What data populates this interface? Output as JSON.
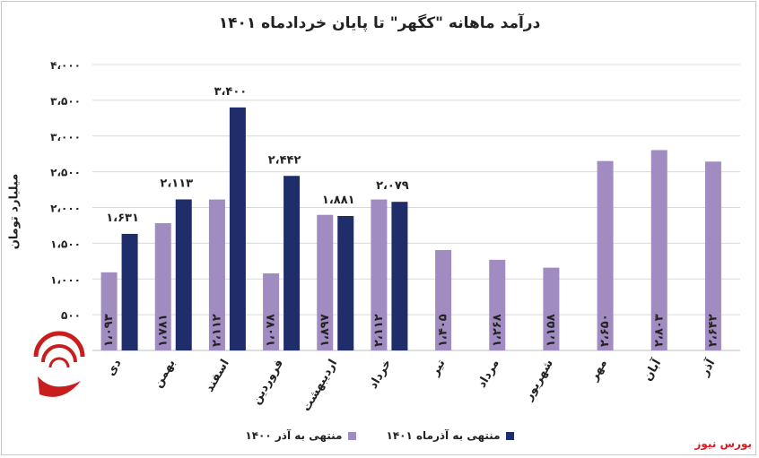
{
  "chart_data": {
    "type": "bar",
    "title": "درآمد ماهانه \"کگهر\" تا پایان خردادماه ۱۴۰۱",
    "ylabel": "میلیارد تومان",
    "xlabel": "",
    "ylim": [
      0,
      4000
    ],
    "yticks": [
      0,
      500,
      1000,
      1500,
      2000,
      2500,
      3000,
      3500,
      4000
    ],
    "ytick_labels": [
      "",
      "۵۰۰",
      "۱،۰۰۰",
      "۱،۵۰۰",
      "۲،۰۰۰",
      "۲،۵۰۰",
      "۳،۰۰۰",
      "۳،۵۰۰",
      "۴،۰۰۰"
    ],
    "categories": [
      "دی",
      "بهمن",
      "اسفند",
      "فروردین",
      "اردیبهشت",
      "خرداد",
      "تیر",
      "مرداد",
      "شهریور",
      "مهر",
      "آبان",
      "آذر"
    ],
    "series": [
      {
        "name": "منتهی به آذر ۱۴۰۰",
        "color": "#a08cc0",
        "values": [
          1093,
          1781,
          2112,
          1078,
          1897,
          2112,
          1405,
          1268,
          1158,
          2650,
          2803,
          2642
        ],
        "labels": [
          "۱،۰۹۳",
          "۱،۷۸۱",
          "۲،۱۱۲",
          "۱،۰۷۸",
          "۱،۸۹۷",
          "۲،۱۱۲",
          "۱،۴۰۵",
          "۱،۲۶۸",
          "۱،۱۵۸",
          "۲،۶۵۰",
          "۲،۸۰۳",
          "۲،۶۴۲"
        ]
      },
      {
        "name": "منتهی به آذرماه ۱۴۰۱",
        "color": "#1f2d6b",
        "values": [
          1631,
          2113,
          3400,
          2442,
          1881,
          2079,
          null,
          null,
          null,
          null,
          null,
          null
        ],
        "labels": [
          "۱،۶۳۱",
          "۲،۱۱۳",
          "۳،۴۰۰",
          "۲،۴۴۲",
          "۱،۸۸۱",
          "۲،۰۷۹",
          "",
          "",
          "",
          "",
          "",
          ""
        ]
      }
    ],
    "grid": true,
    "legend_position": "bottom"
  },
  "watermark": {
    "text": "بورس نیوز",
    "color": "#d42020"
  }
}
